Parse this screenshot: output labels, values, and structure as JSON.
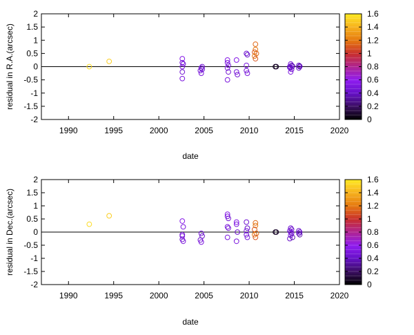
{
  "chart_data": [
    {
      "type": "scatter",
      "xlabel": "date",
      "ylabel": "residual in R.A.(arcsec)",
      "xlim": [
        1987,
        2020
      ],
      "ylim": [
        -2,
        2
      ],
      "xticks": [
        "1990",
        "1995",
        "2000",
        "2005",
        "2010",
        "2015",
        "2020"
      ],
      "xtick_values": [
        1990,
        1995,
        2000,
        2005,
        2010,
        2015,
        2020
      ],
      "yticks": [
        "2",
        "1.5",
        "1",
        "0.5",
        "0",
        "-0.5",
        "-1",
        "-1.5",
        "-2"
      ],
      "ytick_values": [
        2,
        1.5,
        1,
        0.5,
        0,
        -0.5,
        -1,
        -1.5,
        -2
      ],
      "colorbar": {
        "range": [
          0,
          1.6
        ],
        "ticks": [
          "1.6",
          "1.4",
          "1.2",
          "1",
          "0.8",
          "0.6",
          "0.4",
          "0.2",
          "0"
        ],
        "tick_values": [
          1.6,
          1.4,
          1.2,
          1.0,
          0.8,
          0.6,
          0.4,
          0.2,
          0
        ]
      },
      "reference_line": 0,
      "points": [
        {
          "x": 1992.3,
          "y": 0.0,
          "c": 1.55
        },
        {
          "x": 1994.5,
          "y": 0.2,
          "c": 1.5
        },
        {
          "x": 2002.6,
          "y": 0.3,
          "c": 0.55
        },
        {
          "x": 2002.6,
          "y": 0.15,
          "c": 0.5
        },
        {
          "x": 2002.7,
          "y": 0.1,
          "c": 0.45
        },
        {
          "x": 2002.6,
          "y": 0.0,
          "c": 0.5
        },
        {
          "x": 2002.6,
          "y": -0.2,
          "c": 0.45
        },
        {
          "x": 2002.6,
          "y": -0.45,
          "c": 0.5
        },
        {
          "x": 2004.7,
          "y": -0.05,
          "c": 0.45
        },
        {
          "x": 2004.8,
          "y": -0.1,
          "c": 0.4
        },
        {
          "x": 2004.6,
          "y": -0.15,
          "c": 0.45
        },
        {
          "x": 2004.7,
          "y": -0.25,
          "c": 0.5
        },
        {
          "x": 2004.8,
          "y": 0.0,
          "c": 0.45
        },
        {
          "x": 2007.6,
          "y": 0.25,
          "c": 0.55
        },
        {
          "x": 2007.6,
          "y": 0.15,
          "c": 0.5
        },
        {
          "x": 2007.7,
          "y": 0.05,
          "c": 0.45
        },
        {
          "x": 2007.6,
          "y": -0.05,
          "c": 0.5
        },
        {
          "x": 2007.7,
          "y": -0.2,
          "c": 0.45
        },
        {
          "x": 2007.6,
          "y": -0.5,
          "c": 0.5
        },
        {
          "x": 2008.6,
          "y": 0.25,
          "c": 0.55
        },
        {
          "x": 2008.6,
          "y": -0.2,
          "c": 0.5
        },
        {
          "x": 2008.7,
          "y": -0.3,
          "c": 0.45
        },
        {
          "x": 2009.7,
          "y": 0.5,
          "c": 0.45
        },
        {
          "x": 2009.8,
          "y": 0.45,
          "c": 0.4
        },
        {
          "x": 2009.7,
          "y": 0.05,
          "c": 0.5
        },
        {
          "x": 2009.7,
          "y": -0.15,
          "c": 0.45
        },
        {
          "x": 2009.8,
          "y": -0.25,
          "c": 0.5
        },
        {
          "x": 2010.7,
          "y": 0.85,
          "c": 1.15
        },
        {
          "x": 2010.7,
          "y": 0.65,
          "c": 1.2
        },
        {
          "x": 2010.6,
          "y": 0.55,
          "c": 1.1
        },
        {
          "x": 2010.8,
          "y": 0.5,
          "c": 1.15
        },
        {
          "x": 2010.6,
          "y": 0.4,
          "c": 1.2
        },
        {
          "x": 2010.7,
          "y": 0.3,
          "c": 1.1
        },
        {
          "x": 2012.9,
          "y": 0.0,
          "c": 0.05
        },
        {
          "x": 2013.0,
          "y": 0.0,
          "c": 0.1
        },
        {
          "x": 2014.6,
          "y": 0.1,
          "c": 0.45
        },
        {
          "x": 2014.7,
          "y": 0.05,
          "c": 0.4
        },
        {
          "x": 2014.5,
          "y": 0.0,
          "c": 0.45
        },
        {
          "x": 2014.6,
          "y": -0.05,
          "c": 0.5
        },
        {
          "x": 2014.7,
          "y": -0.1,
          "c": 0.45
        },
        {
          "x": 2014.6,
          "y": -0.2,
          "c": 0.5
        },
        {
          "x": 2014.8,
          "y": 0.02,
          "c": 0.35
        },
        {
          "x": 2014.5,
          "y": -0.03,
          "c": 0.4
        },
        {
          "x": 2015.5,
          "y": 0.05,
          "c": 0.4
        },
        {
          "x": 2015.6,
          "y": 0.0,
          "c": 0.45
        },
        {
          "x": 2015.5,
          "y": -0.05,
          "c": 0.4
        },
        {
          "x": 2015.6,
          "y": 0.02,
          "c": 0.35
        }
      ]
    },
    {
      "type": "scatter",
      "xlabel": "date",
      "ylabel": "residual in Dec.(arcsec)",
      "xlim": [
        1987,
        2020
      ],
      "ylim": [
        -2,
        2
      ],
      "xticks": [
        "1990",
        "1995",
        "2000",
        "2005",
        "2010",
        "2015",
        "2020"
      ],
      "xtick_values": [
        1990,
        1995,
        2000,
        2005,
        2010,
        2015,
        2020
      ],
      "yticks": [
        "2",
        "1.5",
        "1",
        "0.5",
        "0",
        "-0.5",
        "-1",
        "-1.5",
        "-2"
      ],
      "ytick_values": [
        2,
        1.5,
        1,
        0.5,
        0,
        -0.5,
        -1,
        -1.5,
        -2
      ],
      "colorbar": {
        "range": [
          0,
          1.6
        ],
        "ticks": [
          "1.6",
          "1.4",
          "1.2",
          "1",
          "0.8",
          "0.6",
          "0.4",
          "0.2",
          "0"
        ],
        "tick_values": [
          1.6,
          1.4,
          1.2,
          1.0,
          0.8,
          0.6,
          0.4,
          0.2,
          0
        ]
      },
      "reference_line": 0,
      "points": [
        {
          "x": 1992.3,
          "y": 0.3,
          "c": 1.55
        },
        {
          "x": 1994.5,
          "y": 0.62,
          "c": 1.5
        },
        {
          "x": 2002.6,
          "y": 0.42,
          "c": 0.55
        },
        {
          "x": 2002.7,
          "y": 0.2,
          "c": 0.5
        },
        {
          "x": 2002.6,
          "y": -0.1,
          "c": 0.45
        },
        {
          "x": 2002.6,
          "y": -0.15,
          "c": 0.5
        },
        {
          "x": 2002.6,
          "y": -0.28,
          "c": 0.45
        },
        {
          "x": 2002.7,
          "y": -0.35,
          "c": 0.5
        },
        {
          "x": 2004.7,
          "y": -0.05,
          "c": 0.45
        },
        {
          "x": 2004.8,
          "y": -0.15,
          "c": 0.4
        },
        {
          "x": 2004.6,
          "y": -0.3,
          "c": 0.45
        },
        {
          "x": 2004.7,
          "y": -0.38,
          "c": 0.5
        },
        {
          "x": 2007.6,
          "y": 0.68,
          "c": 0.55
        },
        {
          "x": 2007.6,
          "y": 0.6,
          "c": 0.5
        },
        {
          "x": 2007.7,
          "y": 0.52,
          "c": 0.45
        },
        {
          "x": 2007.6,
          "y": 0.2,
          "c": 0.5
        },
        {
          "x": 2007.7,
          "y": 0.15,
          "c": 0.45
        },
        {
          "x": 2007.6,
          "y": -0.2,
          "c": 0.5
        },
        {
          "x": 2008.6,
          "y": 0.38,
          "c": 0.55
        },
        {
          "x": 2008.6,
          "y": 0.3,
          "c": 0.5
        },
        {
          "x": 2008.7,
          "y": 0.0,
          "c": 0.45
        },
        {
          "x": 2008.6,
          "y": -0.35,
          "c": 0.5
        },
        {
          "x": 2009.7,
          "y": 0.38,
          "c": 0.45
        },
        {
          "x": 2009.8,
          "y": 0.15,
          "c": 0.4
        },
        {
          "x": 2009.7,
          "y": 0.05,
          "c": 0.5
        },
        {
          "x": 2009.7,
          "y": -0.1,
          "c": 0.45
        },
        {
          "x": 2009.8,
          "y": -0.2,
          "c": 0.5
        },
        {
          "x": 2010.7,
          "y": 0.35,
          "c": 1.15
        },
        {
          "x": 2010.7,
          "y": 0.25,
          "c": 1.2
        },
        {
          "x": 2010.6,
          "y": 0.1,
          "c": 1.1
        },
        {
          "x": 2010.8,
          "y": -0.05,
          "c": 1.15
        },
        {
          "x": 2010.6,
          "y": -0.1,
          "c": 1.2
        },
        {
          "x": 2010.7,
          "y": -0.2,
          "c": 1.1
        },
        {
          "x": 2012.9,
          "y": 0.0,
          "c": 0.05
        },
        {
          "x": 2013.0,
          "y": 0.0,
          "c": 0.1
        },
        {
          "x": 2014.6,
          "y": 0.15,
          "c": 0.45
        },
        {
          "x": 2014.7,
          "y": 0.1,
          "c": 0.4
        },
        {
          "x": 2014.5,
          "y": 0.05,
          "c": 0.45
        },
        {
          "x": 2014.6,
          "y": 0.0,
          "c": 0.5
        },
        {
          "x": 2014.7,
          "y": -0.05,
          "c": 0.45
        },
        {
          "x": 2014.6,
          "y": -0.12,
          "c": 0.5
        },
        {
          "x": 2014.8,
          "y": -0.2,
          "c": 0.35
        },
        {
          "x": 2014.5,
          "y": -0.25,
          "c": 0.4
        },
        {
          "x": 2015.5,
          "y": 0.05,
          "c": 0.4
        },
        {
          "x": 2015.6,
          "y": 0.0,
          "c": 0.45
        },
        {
          "x": 2015.5,
          "y": -0.05,
          "c": 0.4
        },
        {
          "x": 2015.6,
          "y": -0.1,
          "c": 0.35
        }
      ]
    }
  ]
}
